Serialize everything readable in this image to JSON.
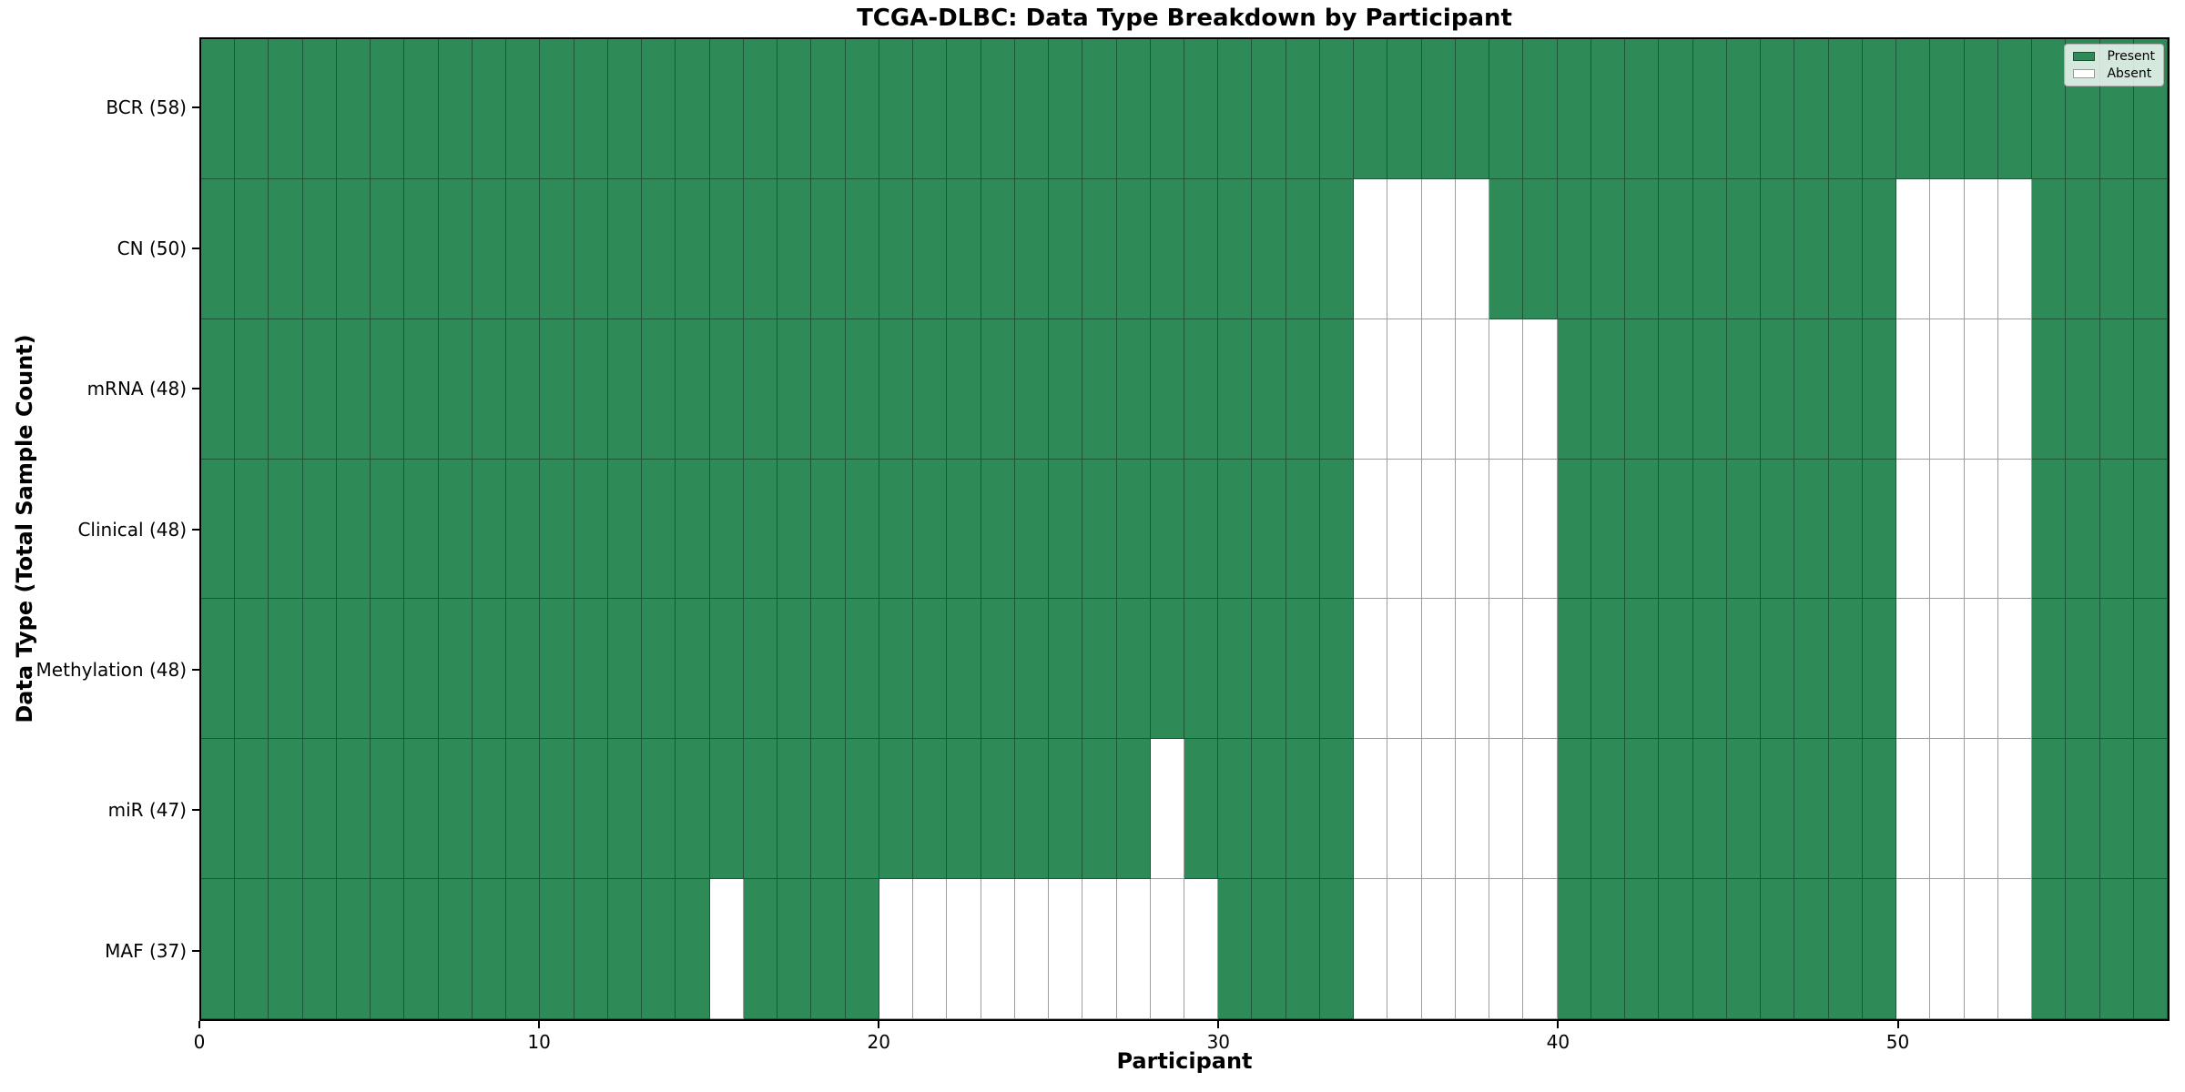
{
  "chart_data": {
    "type": "heatmap",
    "title": "TCGA-DLBC: Data Type Breakdown by Participant",
    "xlabel": "Participant",
    "ylabel": "Data Type (Total Sample Count)",
    "x_ticks": [
      0,
      10,
      20,
      30,
      40,
      50
    ],
    "x_range": [
      0,
      58
    ],
    "n_participants": 58,
    "grid": "on",
    "legend_position": "upper right",
    "colors": {
      "present": "#2E8B57",
      "absent": "#FFFFFF",
      "cell_edge": "rgba(0,0,0,0.38)",
      "axis": "#000000"
    },
    "legend": [
      {
        "label": "Present",
        "value": "present",
        "color": "#2E8B57"
      },
      {
        "label": "Absent",
        "value": "absent",
        "color": "#FFFFFF"
      }
    ],
    "rows": [
      {
        "label": "BCR (58)",
        "data_type": "BCR",
        "total": 58,
        "absent_participants": []
      },
      {
        "label": "CN (50)",
        "data_type": "CN",
        "total": 50,
        "absent_participants": [
          34,
          35,
          36,
          37,
          50,
          51,
          52,
          53
        ]
      },
      {
        "label": "mRNA (48)",
        "data_type": "mRNA",
        "total": 48,
        "absent_participants": [
          34,
          35,
          36,
          37,
          38,
          39,
          50,
          51,
          52,
          53
        ]
      },
      {
        "label": "Clinical (48)",
        "data_type": "Clinical",
        "total": 48,
        "absent_participants": [
          34,
          35,
          36,
          37,
          38,
          39,
          50,
          51,
          52,
          53
        ]
      },
      {
        "label": "Methylation (48)",
        "data_type": "Methylation",
        "total": 48,
        "absent_participants": [
          34,
          35,
          36,
          37,
          38,
          39,
          50,
          51,
          52,
          53
        ]
      },
      {
        "label": "miR (47)",
        "data_type": "miR",
        "total": 47,
        "absent_participants": [
          28,
          34,
          35,
          36,
          37,
          38,
          39,
          50,
          51,
          52,
          53
        ]
      },
      {
        "label": "MAF (37)",
        "data_type": "MAF",
        "total": 37,
        "absent_participants": [
          15,
          20,
          21,
          22,
          23,
          24,
          25,
          26,
          27,
          28,
          29,
          34,
          35,
          36,
          37,
          38,
          39,
          50,
          51,
          52,
          53
        ]
      }
    ]
  }
}
